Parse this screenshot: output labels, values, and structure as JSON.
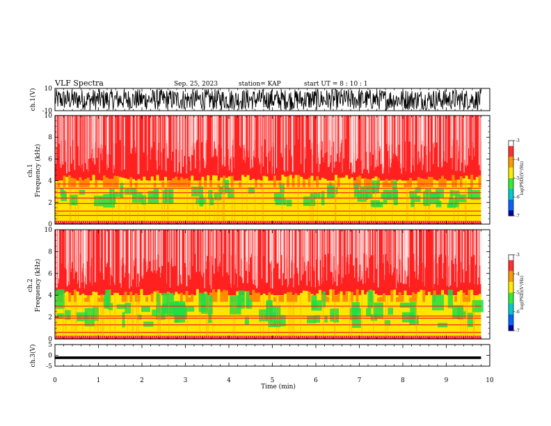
{
  "header": {
    "title": "VLF Spectra",
    "date": "Sep. 25, 2023",
    "station": "station= KAP",
    "start": "start  UT  =   8  : 10 : 1"
  },
  "chart_data": [
    {
      "type": "line",
      "panel": "ch1-waveform",
      "ylabel": "ch.1(V)",
      "ylim": [
        -10,
        10
      ],
      "yticks": [
        "10",
        "-10"
      ],
      "xlim": [
        0,
        10
      ],
      "description_series": "dense black waveform spanning roughly -10 to 10 V over 0–9.8 min"
    },
    {
      "type": "heatmap",
      "panel": "ch1-spectrogram",
      "ylabel": "ch.1\nFrequency (kHz)",
      "ylim": [
        0,
        10
      ],
      "yticks": [
        "0",
        "2",
        "4",
        "6",
        "8",
        "10"
      ],
      "xlim": [
        0,
        10
      ],
      "colorbar": {
        "label": "log(PSD)(V²/Hz)",
        "range": [
          -7,
          -3
        ],
        "ticks": [
          "-3",
          "-4",
          "-5",
          "-6",
          "-7"
        ]
      },
      "bands_khz": [
        {
          "from": 0.3,
          "to": 4.0,
          "log_psd": -4.3,
          "color": "yellow"
        },
        {
          "from": 1.5,
          "to": 3.5,
          "log_psd": -4.7,
          "color": "green"
        },
        {
          "from": 4.0,
          "to": 10.0,
          "log_psd": -3.6,
          "color": "red"
        }
      ]
    },
    {
      "type": "heatmap",
      "panel": "ch2-spectrogram",
      "ylabel": "ch.2\nFrequency (kHz)",
      "ylim": [
        0,
        10
      ],
      "yticks": [
        "0",
        "2",
        "4",
        "6",
        "8",
        "10"
      ],
      "xlim": [
        0,
        10
      ],
      "colorbar": {
        "label": "log(PSD)(V²/Hz)",
        "range": [
          -7,
          -3
        ],
        "ticks": [
          "-3",
          "-4",
          "-5",
          "-6",
          "-7"
        ]
      },
      "bands_khz": [
        {
          "from": 0.3,
          "to": 4.0,
          "log_psd": -4.6,
          "color": "yellow"
        },
        {
          "from": 1.0,
          "to": 3.5,
          "log_psd": -5.0,
          "color": "green"
        },
        {
          "from": 4.0,
          "to": 10.0,
          "log_psd": -3.6,
          "color": "red"
        }
      ]
    },
    {
      "type": "line",
      "panel": "ch3-waveform",
      "ylabel": "ch.3(V)",
      "ylim": [
        -5,
        5
      ],
      "yticks": [
        "5",
        "0",
        "-5"
      ],
      "xlim": [
        0,
        10
      ],
      "description_series": "thick black band near -1 V over 0–9.8 min"
    }
  ],
  "xaxis": {
    "label": "Time (min)",
    "ticks": [
      "0",
      "1",
      "2",
      "3",
      "4",
      "5",
      "6",
      "7",
      "8",
      "9",
      "10"
    ],
    "data_end": 9.8
  },
  "colors": {
    "red": "#ff2020",
    "yellow": "#ffe600",
    "green": "#33e633",
    "ink": "#000000"
  }
}
